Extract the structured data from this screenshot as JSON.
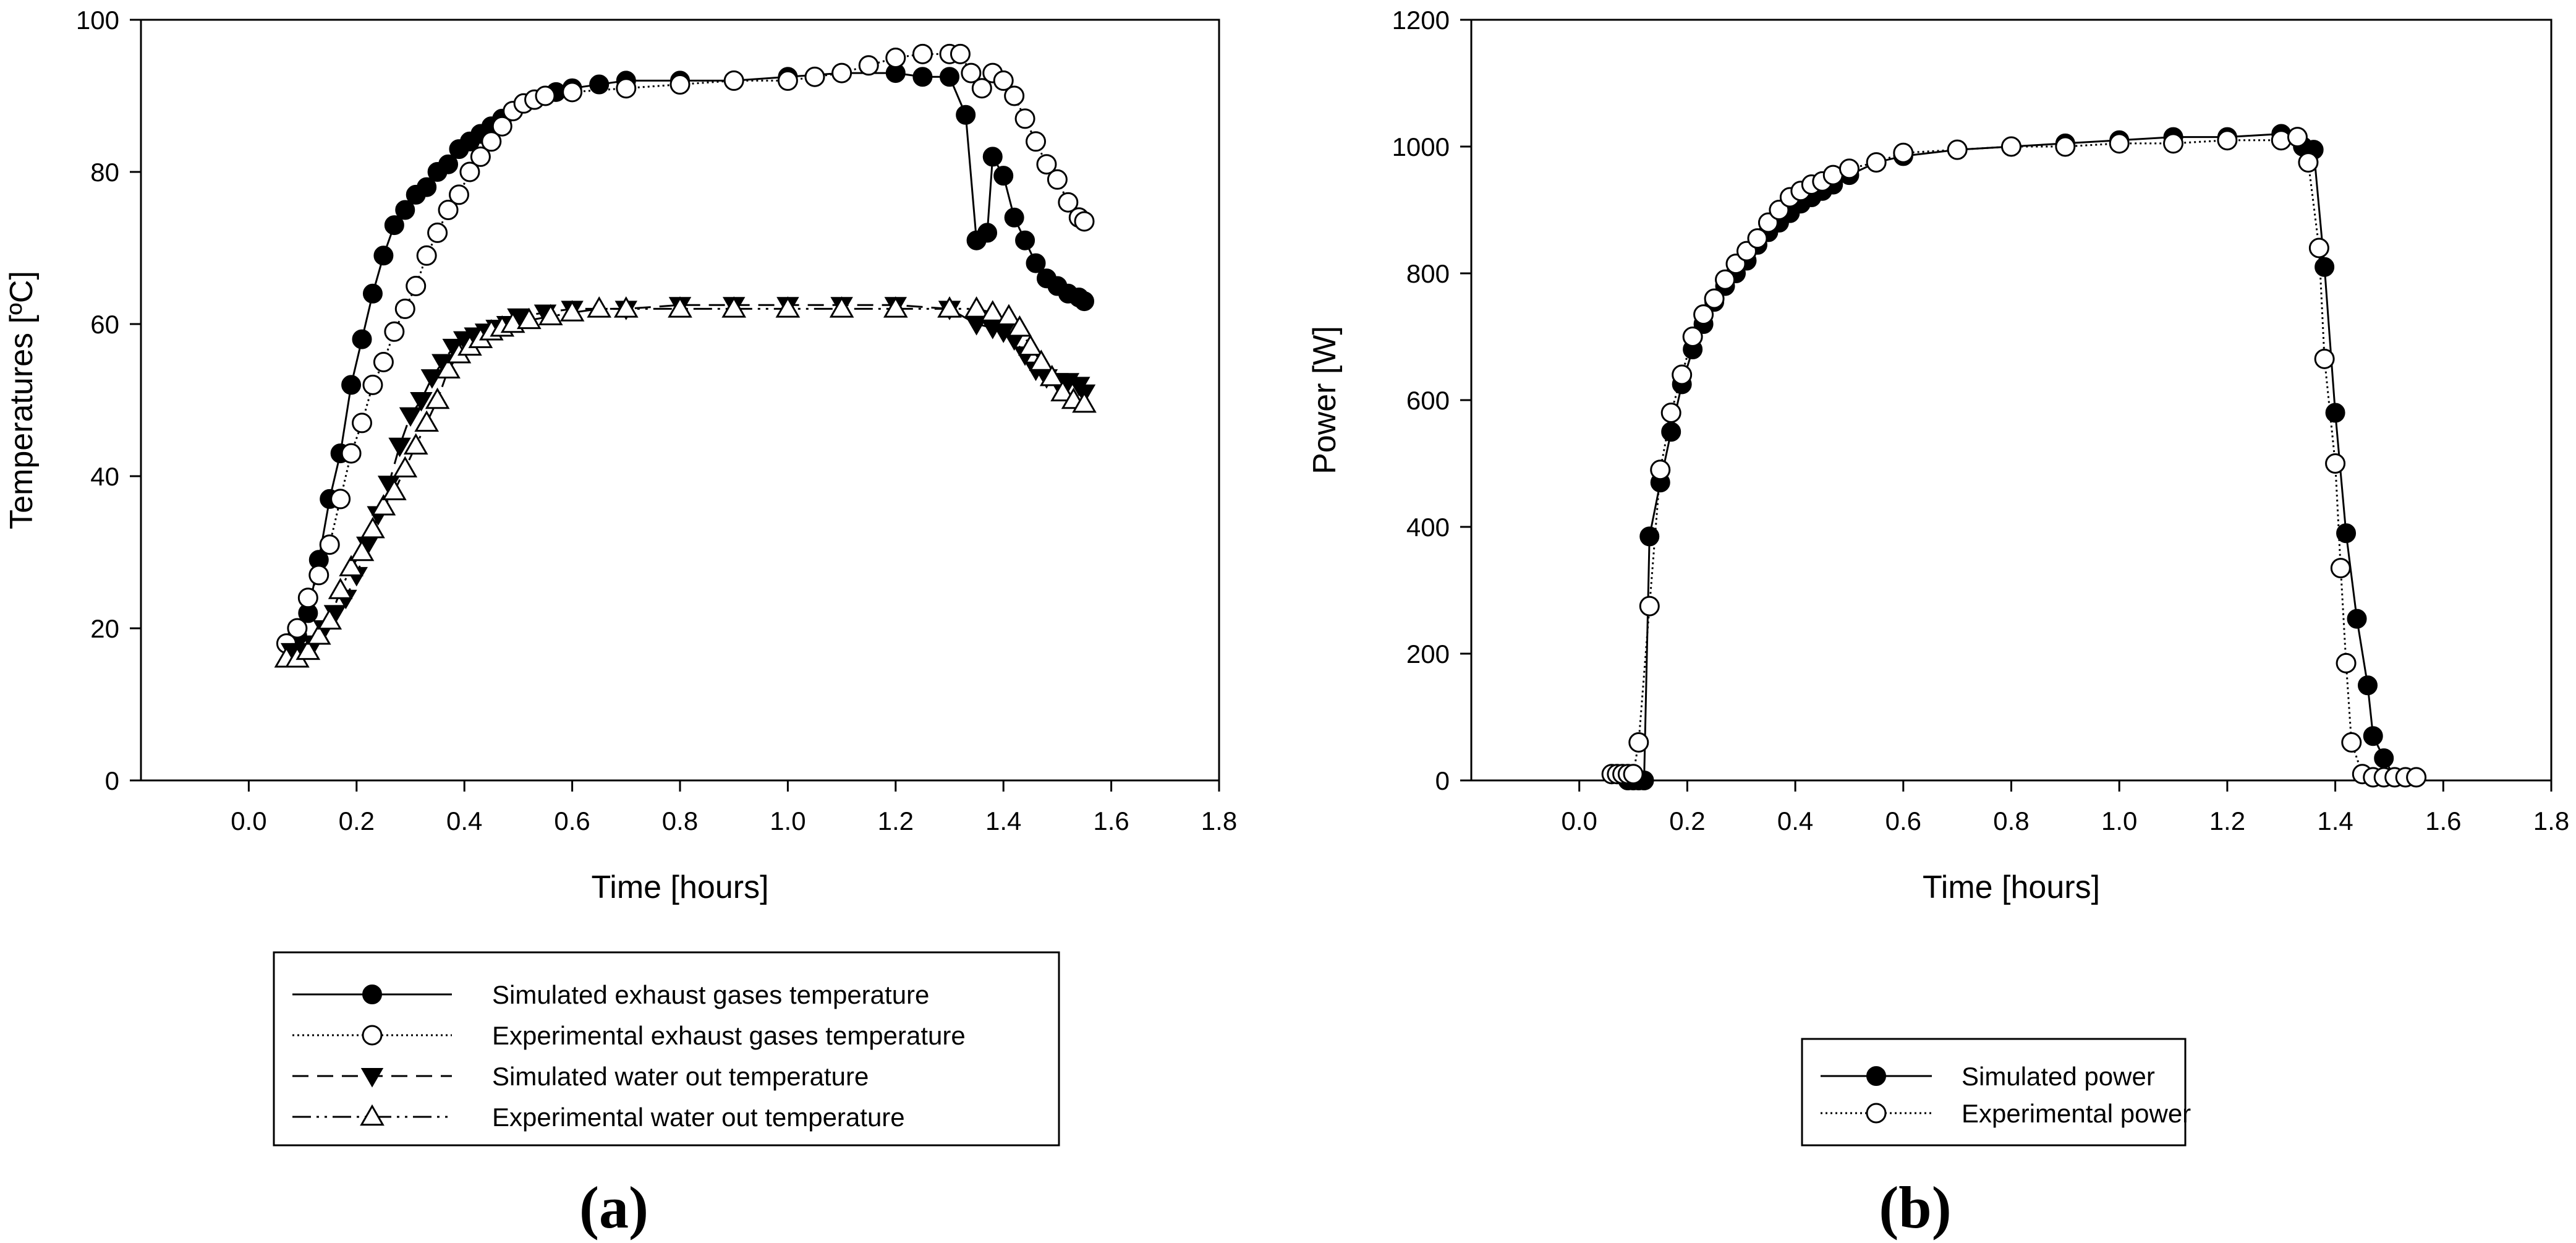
{
  "chart_data": [
    {
      "type": "scatter",
      "panel_label": "(a)",
      "xlabel": "Time [hours]",
      "ylabel": "Temperatures [ºC]",
      "xlim": [
        -0.2,
        1.8
      ],
      "ylim": [
        0,
        100
      ],
      "xticks": [
        "0.0",
        "0.2",
        "0.4",
        "0.6",
        "0.8",
        "1.0",
        "1.2",
        "1.4",
        "1.6",
        "1.8"
      ],
      "yticks": [
        "0",
        "20",
        "40",
        "60",
        "80",
        "100"
      ],
      "legend_position": "below",
      "series": [
        {
          "name": "Simulated exhaust gases temperature",
          "marker": "filled-circle",
          "line": "solid",
          "x": [
            0.07,
            0.09,
            0.11,
            0.13,
            0.15,
            0.17,
            0.19,
            0.21,
            0.23,
            0.25,
            0.27,
            0.29,
            0.31,
            0.33,
            0.35,
            0.37,
            0.39,
            0.41,
            0.43,
            0.45,
            0.47,
            0.49,
            0.51,
            0.53,
            0.55,
            0.57,
            0.6,
            0.65,
            0.7,
            0.8,
            0.9,
            1.0,
            1.1,
            1.2,
            1.25,
            1.3,
            1.33,
            1.35,
            1.37,
            1.38,
            1.4,
            1.42,
            1.44,
            1.46,
            1.48,
            1.5,
            1.52,
            1.54,
            1.55
          ],
          "y": [
            18,
            19,
            22,
            29,
            37,
            43,
            52,
            58,
            64,
            69,
            73,
            75,
            77,
            78,
            80,
            81,
            83,
            84,
            85,
            86,
            87,
            88,
            89,
            89.5,
            90,
            90.5,
            91,
            91.5,
            92,
            92,
            92,
            92.5,
            93,
            93,
            92.5,
            92.5,
            87.5,
            71,
            72,
            82,
            79.5,
            74,
            71,
            68,
            66,
            65,
            64,
            63.5,
            63
          ]
        },
        {
          "name": "Experimental exhaust gases temperature",
          "marker": "open-circle",
          "line": "dotted",
          "x": [
            0.07,
            0.09,
            0.11,
            0.13,
            0.15,
            0.17,
            0.19,
            0.21,
            0.23,
            0.25,
            0.27,
            0.29,
            0.31,
            0.33,
            0.35,
            0.37,
            0.39,
            0.41,
            0.43,
            0.45,
            0.47,
            0.49,
            0.51,
            0.53,
            0.55,
            0.6,
            0.7,
            0.8,
            0.9,
            1.0,
            1.05,
            1.1,
            1.15,
            1.2,
            1.25,
            1.3,
            1.32,
            1.34,
            1.36,
            1.38,
            1.4,
            1.42,
            1.44,
            1.46,
            1.48,
            1.5,
            1.52,
            1.54,
            1.55
          ],
          "y": [
            18,
            20,
            24,
            27,
            31,
            37,
            43,
            47,
            52,
            55,
            59,
            62,
            65,
            69,
            72,
            75,
            77,
            80,
            82,
            84,
            86,
            88,
            89,
            89.5,
            90,
            90.5,
            91,
            91.5,
            92,
            92,
            92.5,
            93,
            94,
            95,
            95.5,
            95.5,
            95.5,
            93,
            91,
            93,
            92,
            90,
            87,
            84,
            81,
            79,
            76,
            74,
            73.5
          ]
        },
        {
          "name": "Simulated water out temperature",
          "marker": "filled-triangle-down",
          "line": "dashed",
          "x": [
            0.08,
            0.1,
            0.12,
            0.14,
            0.16,
            0.18,
            0.2,
            0.22,
            0.24,
            0.26,
            0.28,
            0.3,
            0.32,
            0.34,
            0.36,
            0.38,
            0.4,
            0.42,
            0.44,
            0.46,
            0.48,
            0.5,
            0.55,
            0.6,
            0.7,
            0.8,
            0.9,
            1.0,
            1.1,
            1.2,
            1.3,
            1.35,
            1.38,
            1.4,
            1.42,
            1.44,
            1.46,
            1.48,
            1.5,
            1.52,
            1.54,
            1.55
          ],
          "y": [
            17,
            17,
            18,
            20,
            22,
            24,
            27,
            31,
            35,
            39,
            44,
            48,
            50,
            53,
            55,
            57,
            58,
            58.5,
            59,
            59.5,
            60,
            61,
            61.5,
            62,
            62,
            62.5,
            62.5,
            62.5,
            62.5,
            62.5,
            62,
            60,
            59.5,
            59,
            58,
            56,
            54,
            53,
            52.5,
            52.5,
            52,
            51
          ]
        },
        {
          "name": "Experimental water out temperature",
          "marker": "open-triangle-up",
          "line": "dash-dot-dot",
          "x": [
            0.07,
            0.09,
            0.11,
            0.13,
            0.15,
            0.17,
            0.19,
            0.21,
            0.23,
            0.25,
            0.27,
            0.29,
            0.31,
            0.33,
            0.35,
            0.37,
            0.39,
            0.41,
            0.43,
            0.45,
            0.47,
            0.49,
            0.52,
            0.56,
            0.6,
            0.65,
            0.7,
            0.8,
            0.9,
            1.0,
            1.1,
            1.2,
            1.3,
            1.35,
            1.38,
            1.41,
            1.43,
            1.45,
            1.47,
            1.49,
            1.51,
            1.53,
            1.55
          ],
          "y": [
            16,
            16,
            17,
            19,
            21,
            25,
            28,
            30,
            33,
            36,
            38,
            41,
            44,
            47,
            50,
            54,
            56,
            57,
            58,
            59,
            59.5,
            60,
            60.5,
            61,
            61.5,
            62,
            62,
            62,
            62,
            62,
            62,
            62,
            62,
            62,
            61.5,
            61,
            59.5,
            57,
            55,
            53,
            51,
            50,
            49.5
          ]
        }
      ]
    },
    {
      "type": "scatter",
      "panel_label": "(b)",
      "xlabel": "Time [hours]",
      "ylabel": "Power [W]",
      "xlim": [
        -0.2,
        1.8
      ],
      "ylim": [
        0,
        1200
      ],
      "xticks": [
        "0.0",
        "0.2",
        "0.4",
        "0.6",
        "0.8",
        "1.0",
        "1.2",
        "1.4",
        "1.6",
        "1.8"
      ],
      "yticks": [
        "0",
        "200",
        "400",
        "600",
        "800",
        "1000",
        "1200"
      ],
      "legend_position": "below",
      "series": [
        {
          "name": "Simulated power",
          "marker": "filled-circle",
          "line": "solid",
          "x": [
            0.09,
            0.1,
            0.11,
            0.12,
            0.13,
            0.15,
            0.17,
            0.19,
            0.21,
            0.23,
            0.25,
            0.27,
            0.29,
            0.31,
            0.33,
            0.35,
            0.37,
            0.39,
            0.41,
            0.43,
            0.45,
            0.47,
            0.5,
            0.55,
            0.6,
            0.7,
            0.8,
            0.9,
            1.0,
            1.1,
            1.2,
            1.3,
            1.34,
            1.36,
            1.38,
            1.4,
            1.42,
            1.44,
            1.46,
            1.47,
            1.49,
            1.51,
            1.53,
            1.55
          ],
          "y": [
            0,
            0,
            0,
            0,
            385,
            470,
            550,
            625,
            680,
            720,
            755,
            780,
            800,
            820,
            845,
            865,
            880,
            895,
            910,
            920,
            930,
            940,
            955,
            975,
            985,
            995,
            1000,
            1005,
            1010,
            1015,
            1015,
            1020,
            1000,
            995,
            810,
            580,
            390,
            255,
            150,
            70,
            35,
            5,
            5,
            5
          ]
        },
        {
          "name": "Experimental power",
          "marker": "open-circle",
          "line": "dotted",
          "x": [
            0.06,
            0.07,
            0.08,
            0.09,
            0.1,
            0.11,
            0.13,
            0.15,
            0.17,
            0.19,
            0.21,
            0.23,
            0.25,
            0.27,
            0.29,
            0.31,
            0.33,
            0.35,
            0.37,
            0.39,
            0.41,
            0.43,
            0.45,
            0.47,
            0.5,
            0.55,
            0.6,
            0.7,
            0.8,
            0.9,
            1.0,
            1.1,
            1.2,
            1.3,
            1.33,
            1.35,
            1.37,
            1.38,
            1.4,
            1.41,
            1.42,
            1.43,
            1.45,
            1.47,
            1.49,
            1.51,
            1.53,
            1.55
          ],
          "y": [
            10,
            10,
            10,
            10,
            10,
            60,
            275,
            490,
            580,
            640,
            700,
            735,
            760,
            790,
            815,
            835,
            855,
            880,
            900,
            920,
            930,
            940,
            945,
            955,
            965,
            975,
            990,
            995,
            1000,
            1000,
            1005,
            1005,
            1010,
            1010,
            1015,
            975,
            840,
            665,
            500,
            335,
            185,
            60,
            10,
            5,
            5,
            5,
            5,
            5
          ]
        }
      ]
    }
  ]
}
